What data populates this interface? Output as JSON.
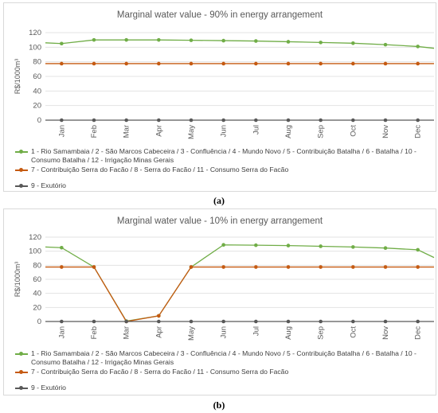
{
  "chart_data": [
    {
      "type": "line",
      "panel_label": "(a)",
      "title": "Marginal water value - 90% in energy arrangement",
      "ylabel": "R$/1000m³",
      "ylim": [
        0,
        120
      ],
      "yticks": [
        0,
        20,
        40,
        60,
        80,
        100,
        120
      ],
      "categories": [
        "Jan",
        "Feb",
        "Mar",
        "Apr",
        "May",
        "Jun",
        "Jul",
        "Aug",
        "Sep",
        "Oct",
        "Nov",
        "Dec"
      ],
      "grid": "horizontal",
      "legend_position": "bottom",
      "series": [
        {
          "name": "1 - Rio Samambaia  / 2 - São Marcos Cabeceira / 3 - Confluência / 4 - Mundo Novo / 5 - Contribuição Batalha / 6 - Batalha / 10 - Consumo Batalha / 12 - Irrigação Minas Gerais",
          "color": "#70ad47",
          "start": 106,
          "values": [
            105,
            110,
            110,
            110,
            109.5,
            109,
            108.5,
            107.5,
            106.5,
            105.5,
            103.5,
            101
          ],
          "end": 98.5
        },
        {
          "name": "7 - Contribuição Serra do Facão / 8 - Serra do Facão / 11 - Consumo Serra do Facão",
          "color": "#c55a11",
          "start": 77.5,
          "values": [
            77.5,
            77.5,
            77.5,
            77.5,
            77.5,
            77.5,
            77.5,
            77.5,
            77.5,
            77.5,
            77.5,
            77.5
          ],
          "end": 77.5
        },
        {
          "name": "9 - Exutório",
          "color": "#595959",
          "start": 0,
          "values": [
            0,
            0,
            0,
            0,
            0,
            0,
            0,
            0,
            0,
            0,
            0,
            0
          ],
          "end": 0
        }
      ]
    },
    {
      "type": "line",
      "panel_label": "(b)",
      "title": "Marginal water value - 10% in energy arrangement",
      "ylabel": "R$/1000m³",
      "ylim": [
        0,
        120
      ],
      "yticks": [
        0,
        20,
        40,
        60,
        80,
        100,
        120
      ],
      "categories": [
        "Jan",
        "Feb",
        "Mar",
        "Apr",
        "May",
        "Jun",
        "Jul",
        "Aug",
        "Sep",
        "Oct",
        "Nov",
        "Dec"
      ],
      "grid": "horizontal",
      "legend_position": "bottom",
      "series": [
        {
          "name": "1 - Rio Samambaia  / 2 - São Marcos Cabeceira / 3 - Confluência / 4 - Mundo Novo / 5 - Contribuição Batalha / 6 - Batalha / 10 - Consumo Batalha / 12 - Irrigação Minas Gerais",
          "color": "#70ad47",
          "start": 106,
          "values": [
            105,
            77.5,
            0.5,
            8,
            77.5,
            109,
            108.5,
            108,
            107,
            106,
            104.5,
            102
          ],
          "end": 91
        },
        {
          "name": "7 - Contribuição Serra do Facão / 8 - Serra do Facão / 11 - Consumo Serra do Facão",
          "color": "#c55a11",
          "start": 77.5,
          "values": [
            77.5,
            77.5,
            0,
            8,
            77.5,
            77.5,
            77.5,
            77.5,
            77.5,
            77.5,
            77.5,
            77.5
          ],
          "end": 77.5
        },
        {
          "name": "9 - Exutório",
          "color": "#595959",
          "start": 0,
          "values": [
            0,
            0,
            0,
            0,
            0,
            0,
            0,
            0,
            0,
            0,
            0,
            0
          ],
          "end": 0
        }
      ]
    }
  ]
}
